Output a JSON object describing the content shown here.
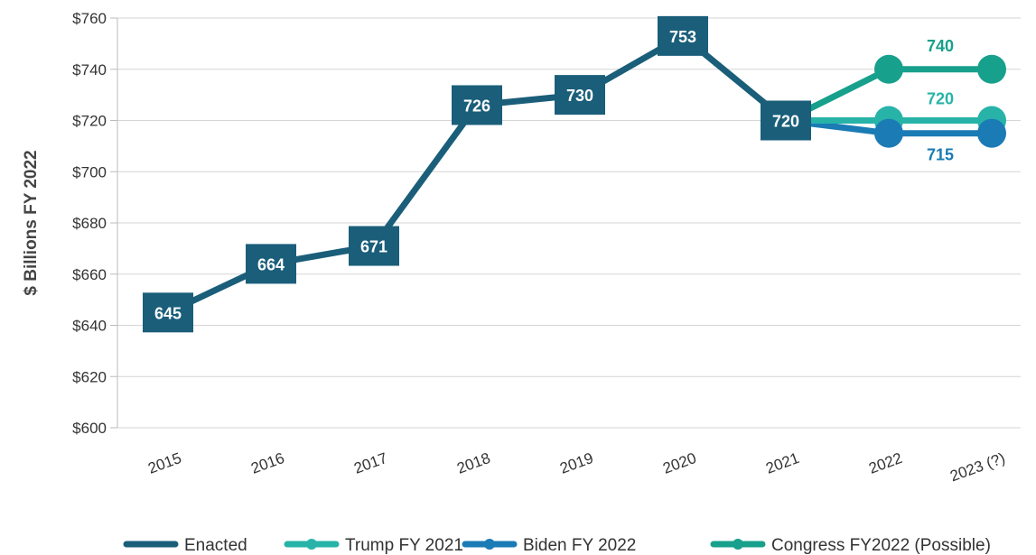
{
  "chart_data": {
    "type": "line",
    "categories": [
      "2015",
      "2016",
      "2017",
      "2018",
      "2019",
      "2020",
      "2021",
      "2022",
      "2023 (?)"
    ],
    "ylabel": "$ Billions FY 2022",
    "xlabel": "",
    "ylim": [
      600,
      760
    ],
    "y_ticks": [
      600,
      620,
      640,
      660,
      680,
      700,
      720,
      740,
      760
    ],
    "y_tick_labels": [
      "$600",
      "$620",
      "$640",
      "$660",
      "$680",
      "$700",
      "$720",
      "$740",
      "$760"
    ],
    "grid": "horizontal",
    "legend_position": "bottom",
    "series": [
      {
        "name": "Enacted",
        "color": "#1a5e7a",
        "markers": false,
        "points": [
          {
            "x": "2015",
            "y": 645
          },
          {
            "x": "2016",
            "y": 664
          },
          {
            "x": "2017",
            "y": 671
          },
          {
            "x": "2018",
            "y": 726
          },
          {
            "x": "2019",
            "y": 730
          },
          {
            "x": "2020",
            "y": 753
          },
          {
            "x": "2021",
            "y": 720
          }
        ],
        "labels": [
          "645",
          "664",
          "671",
          "726",
          "730",
          "753",
          "720"
        ]
      },
      {
        "name": "Trump FY 2021",
        "color": "#27b3a8",
        "markers": true,
        "points": [
          {
            "x": "2021",
            "y": 720
          },
          {
            "x": "2022",
            "y": 720
          },
          {
            "x": "2023 (?)",
            "y": 720
          }
        ],
        "end_label": "720"
      },
      {
        "name": "Biden FY 2022",
        "color": "#1a7bb5",
        "markers": true,
        "points": [
          {
            "x": "2021",
            "y": 720
          },
          {
            "x": "2022",
            "y": 715
          },
          {
            "x": "2023 (?)",
            "y": 715
          }
        ],
        "end_label": "715"
      },
      {
        "name": "Congress FY2022 (Possible)",
        "color": "#17a08c",
        "markers": true,
        "points": [
          {
            "x": "2021",
            "y": 720
          },
          {
            "x": "2022",
            "y": 740
          },
          {
            "x": "2023 (?)",
            "y": 740
          }
        ],
        "end_label": "740"
      }
    ]
  }
}
